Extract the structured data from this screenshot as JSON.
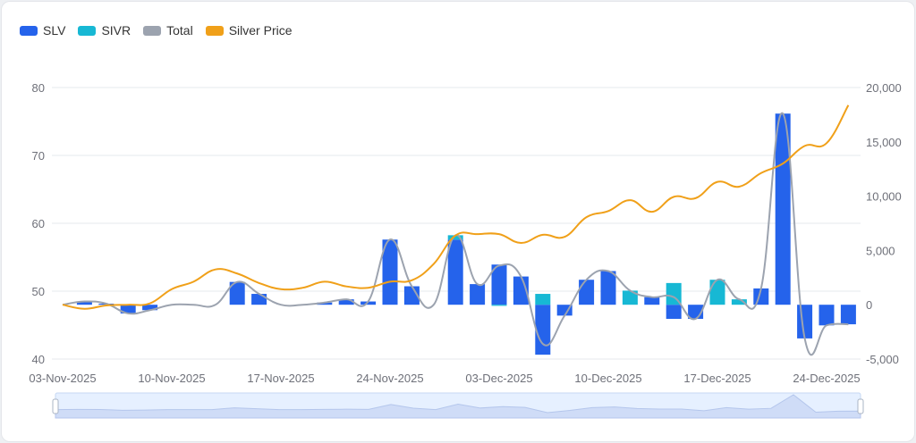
{
  "chart_data": {
    "type": "bar",
    "legend": {
      "placement": "top-left",
      "items": [
        {
          "name": "SLV",
          "color": "#2563eb"
        },
        {
          "name": "SIVR",
          "color": "#17b8d4"
        },
        {
          "name": "Total",
          "color": "#9ca3af"
        },
        {
          "name": "Silver Price",
          "color": "#f0a019"
        }
      ]
    },
    "categories": [
      "03-Nov-2025",
      "04-Nov-2025",
      "05-Nov-2025",
      "06-Nov-2025",
      "07-Nov-2025",
      "10-Nov-2025",
      "11-Nov-2025",
      "12-Nov-2025",
      "13-Nov-2025",
      "14-Nov-2025",
      "17-Nov-2025",
      "18-Nov-2025",
      "19-Nov-2025",
      "20-Nov-2025",
      "21-Nov-2025",
      "24-Nov-2025",
      "25-Nov-2025",
      "26-Nov-2025",
      "01-Dec-2025",
      "02-Dec-2025",
      "03-Dec-2025",
      "04-Dec-2025",
      "05-Dec-2025",
      "08-Dec-2025",
      "09-Dec-2025",
      "10-Dec-2025",
      "11-Dec-2025",
      "12-Dec-2025",
      "15-Dec-2025",
      "16-Dec-2025",
      "17-Dec-2025",
      "18-Dec-2025",
      "19-Dec-2025",
      "22-Dec-2025",
      "23-Dec-2025",
      "24-Dec-2025",
      "26-Dec-2025"
    ],
    "x_tick_labels": [
      "03-Nov-2025",
      "10-Nov-2025",
      "17-Nov-2025",
      "24-Nov-2025",
      "03-Dec-2025",
      "10-Dec-2025",
      "17-Dec-2025",
      "24-Dec-2025"
    ],
    "series": [
      {
        "name": "SLV",
        "type": "bar",
        "stack": "flows",
        "axis": "right",
        "values": [
          0,
          300,
          100,
          -800,
          -500,
          0,
          0,
          0,
          2100,
          1000,
          0,
          0,
          200,
          500,
          300,
          6000,
          1700,
          0,
          6000,
          1900,
          3700,
          2600,
          -4600,
          -1000,
          2300,
          3100,
          0,
          700,
          -1300,
          -1300,
          0,
          0,
          1500,
          17600,
          -3100,
          -1900,
          -1800
        ]
      },
      {
        "name": "SIVR",
        "type": "bar",
        "stack": "flows",
        "axis": "right",
        "values": [
          0,
          0,
          0,
          0,
          0,
          0,
          0,
          0,
          0,
          0,
          0,
          0,
          0,
          0,
          0,
          0,
          0,
          0,
          400,
          0,
          -100,
          0,
          1000,
          0,
          0,
          0,
          1300,
          0,
          2000,
          0,
          2300,
          500,
          0,
          0,
          0,
          0,
          0
        ]
      },
      {
        "name": "Total",
        "type": "line",
        "smooth": true,
        "axis": "right",
        "values": [
          0,
          300,
          100,
          -800,
          -500,
          0,
          0,
          0,
          2100,
          1000,
          0,
          0,
          200,
          500,
          300,
          6000,
          1700,
          0,
          6400,
          1900,
          3600,
          2600,
          -3600,
          -1000,
          2300,
          3100,
          1300,
          700,
          700,
          -1300,
          2300,
          500,
          1500,
          17600,
          -3100,
          -1900,
          -1800
        ]
      },
      {
        "name": "Silver Price",
        "type": "line",
        "smooth": true,
        "axis": "left",
        "values": [
          48.0,
          47.4,
          47.9,
          48.0,
          48.2,
          50.3,
          51.4,
          53.2,
          52.6,
          51.2,
          50.3,
          50.5,
          51.4,
          50.7,
          50.5,
          51.4,
          51.6,
          54.0,
          58.2,
          58.4,
          58.4,
          57.1,
          58.3,
          58.0,
          60.9,
          61.8,
          63.4,
          61.7,
          63.9,
          63.7,
          66.1,
          65.4,
          67.4,
          68.8,
          71.4,
          71.8,
          77.4
        ]
      }
    ],
    "y_left": {
      "range": [
        40,
        80
      ],
      "ticks": [
        "40",
        "50",
        "60",
        "70",
        "80"
      ]
    },
    "y_right": {
      "range": [
        -5000,
        20000
      ],
      "ticks": [
        "-5,000",
        "0",
        "5,000",
        "10,000",
        "15,000",
        "20,000"
      ]
    },
    "grid": true,
    "data_zoom": {
      "start_percent": 0,
      "end_percent": 100
    }
  }
}
